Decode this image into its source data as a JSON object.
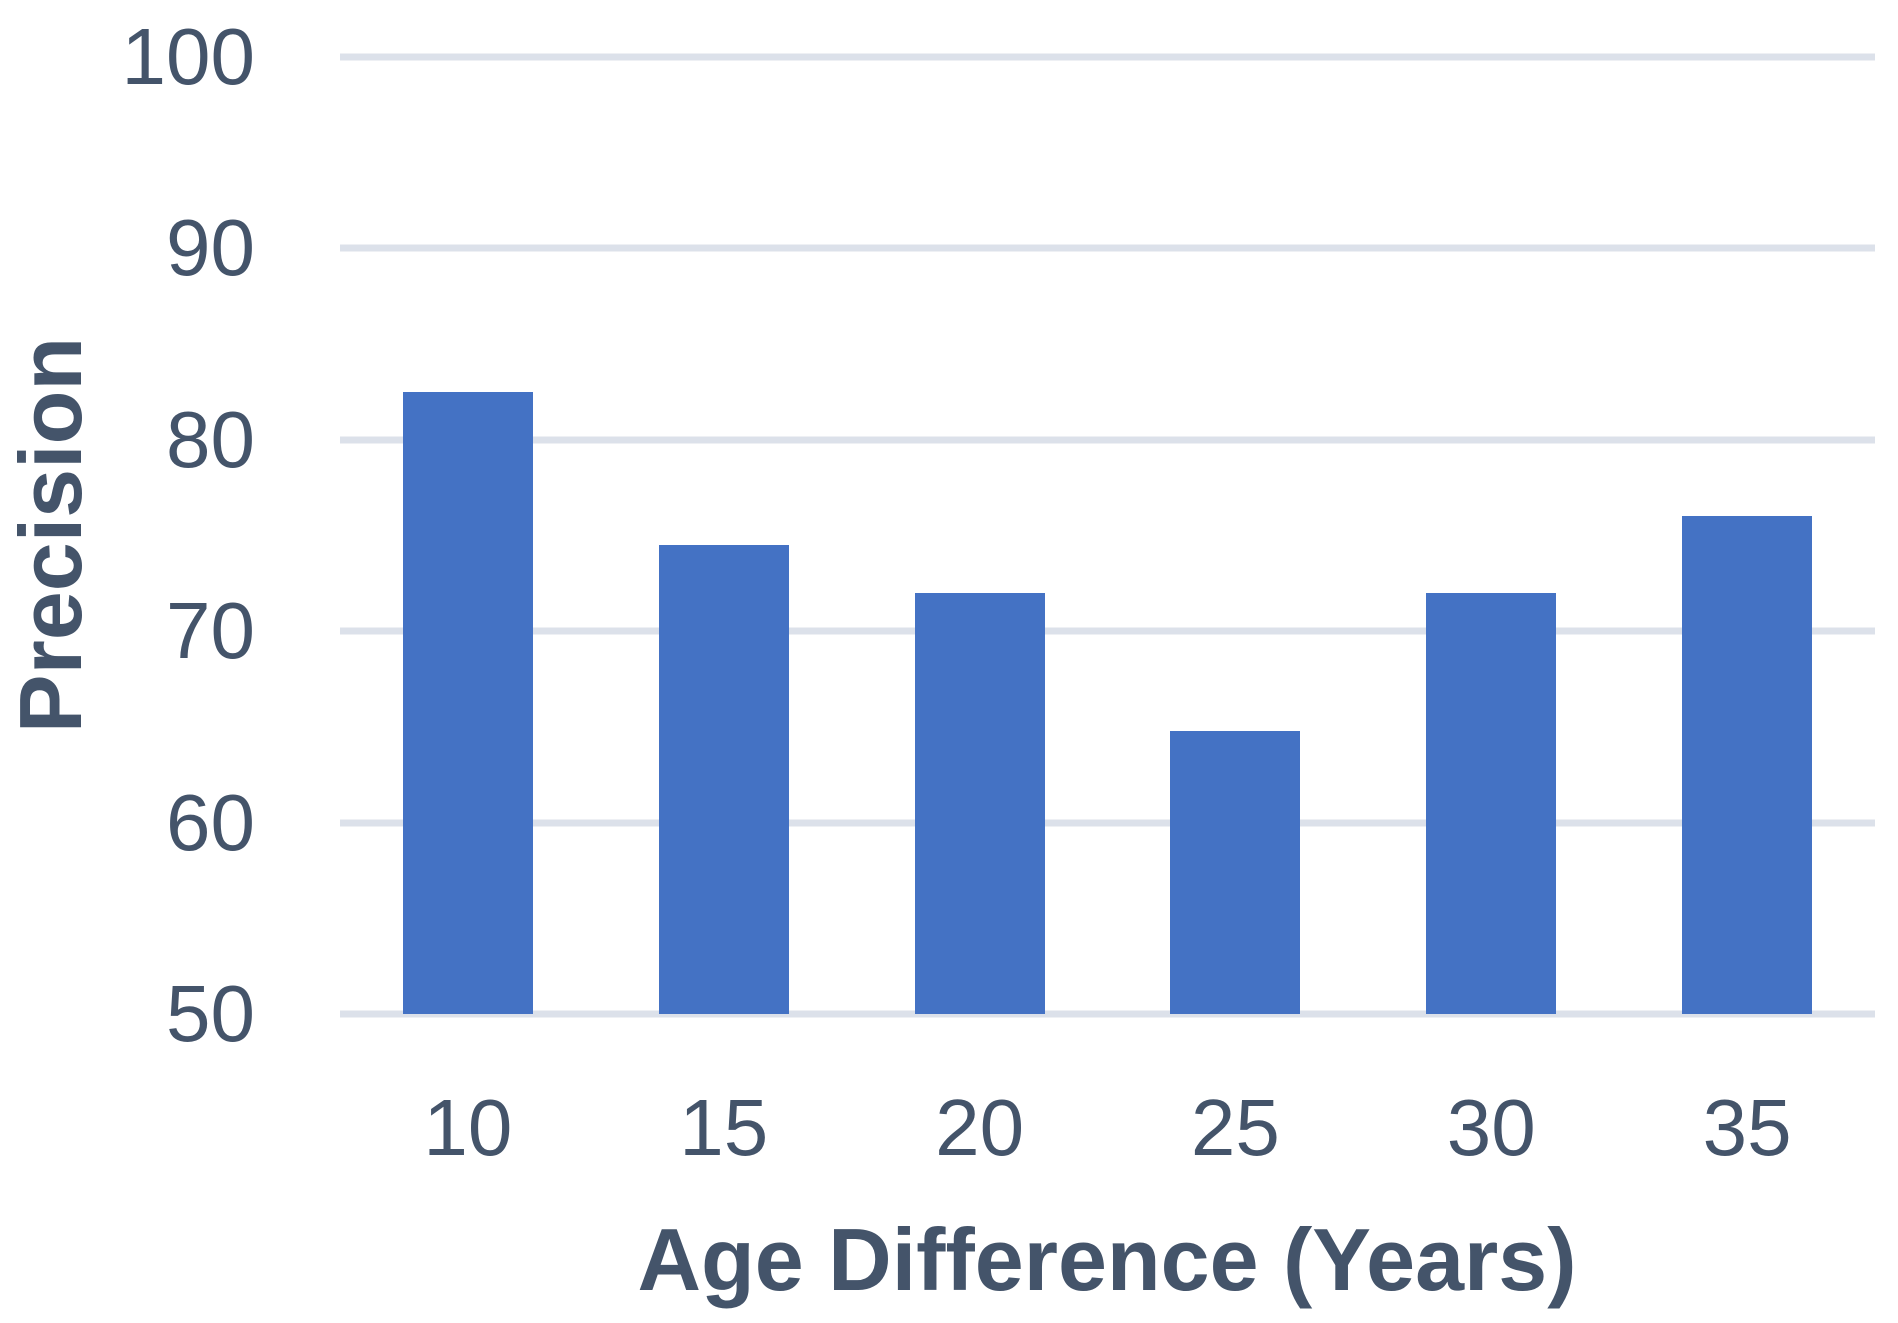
{
  "chart_data": {
    "type": "bar",
    "categories": [
      "10",
      "15",
      "20",
      "25",
      "30",
      "35"
    ],
    "values": [
      82.5,
      74.5,
      72,
      64.8,
      72,
      76
    ],
    "title": "",
    "xlabel": "Age Difference (Years)",
    "ylabel": "Precision",
    "ylim": [
      50,
      100
    ],
    "y_ticks": [
      100,
      90,
      80,
      70,
      60,
      50
    ],
    "grid": "horizontal-only",
    "legend": "none",
    "bar_color": "#4472C4",
    "gridline_color": "#dce1ea",
    "text_color": "#44546A"
  }
}
